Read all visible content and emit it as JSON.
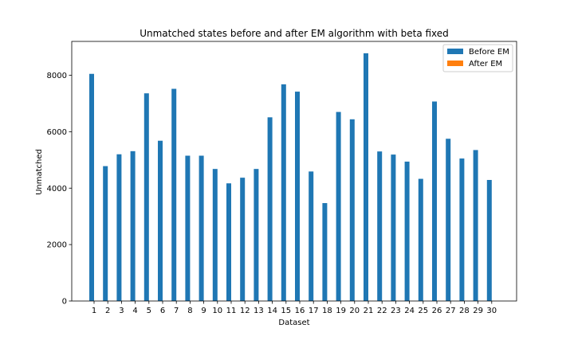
{
  "chart_data": {
    "type": "bar",
    "title": "Unmatched states before and after EM algorithm with beta fixed",
    "xlabel": "Dataset",
    "ylabel": "Unmatched",
    "ylim": [
      0,
      9200
    ],
    "yticks": [
      0,
      2000,
      4000,
      6000,
      8000
    ],
    "categories": [
      "1",
      "2",
      "3",
      "4",
      "5",
      "6",
      "7",
      "8",
      "9",
      "10",
      "11",
      "12",
      "13",
      "14",
      "15",
      "16",
      "17",
      "18",
      "19",
      "20",
      "21",
      "22",
      "23",
      "24",
      "25",
      "26",
      "27",
      "28",
      "29",
      "30"
    ],
    "series": [
      {
        "name": "Before EM",
        "color": "#1f77b4",
        "values": [
          8050,
          4780,
          5200,
          5310,
          7360,
          5680,
          7520,
          5150,
          5150,
          4680,
          4170,
          4370,
          4680,
          6510,
          7680,
          7420,
          4590,
          3470,
          6700,
          6440,
          8780,
          5300,
          5190,
          4940,
          4330,
          7070,
          5750,
          5050,
          5350,
          4290
        ]
      },
      {
        "name": "After EM",
        "color": "#ff7f0e",
        "values": [
          0,
          0,
          0,
          0,
          0,
          0,
          0,
          0,
          0,
          0,
          0,
          0,
          0,
          0,
          0,
          0,
          0,
          0,
          0,
          0,
          0,
          0,
          0,
          0,
          0,
          0,
          0,
          0,
          0,
          0
        ]
      }
    ],
    "legend": "top-right",
    "grid": false
  }
}
